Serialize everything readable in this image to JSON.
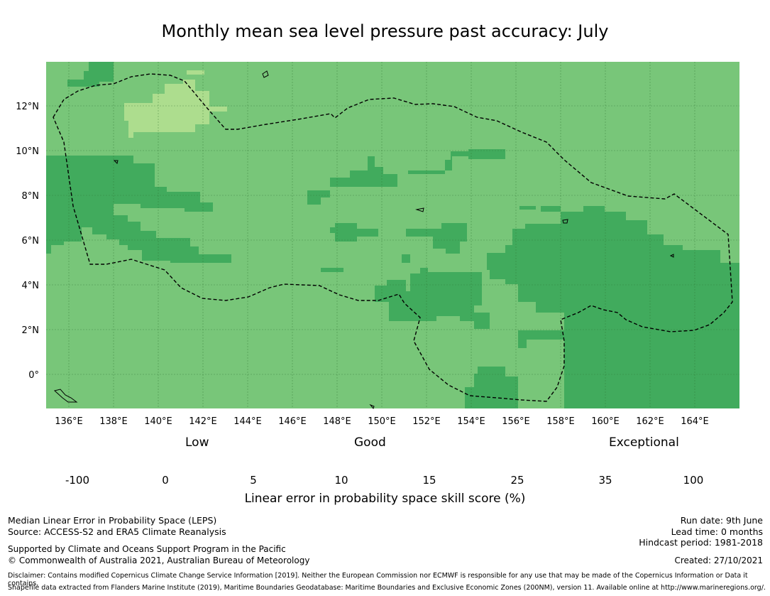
{
  "title": "Monthly mean sea level pressure past accuracy: July",
  "map": {
    "lon_ticks": [
      "136°E",
      "138°E",
      "140°E",
      "142°E",
      "144°E",
      "146°E",
      "148°E",
      "150°E",
      "152°E",
      "154°E",
      "156°E",
      "158°E",
      "160°E",
      "162°E",
      "164°E"
    ],
    "lat_ticks": [
      "12°N",
      "10°N",
      "8°N",
      "6°N",
      "4°N",
      "2°N",
      "0°"
    ],
    "base_color": "#78c679",
    "boundary_style": "dashed black line (EEZ)"
  },
  "legend": {
    "categories": [
      "Low",
      "Good",
      "Exceptional"
    ],
    "ticks": [
      "-100",
      "0",
      "5",
      "10",
      "15",
      "25",
      "35",
      "100"
    ],
    "colors": [
      "#ffffff",
      "#ffffcc",
      "#d9f0a3",
      "#addd8e",
      "#78c679",
      "#41ab5d",
      "#238443"
    ],
    "title": "Linear error in probability space skill score (%)"
  },
  "footer": {
    "left_line1": "Median Linear Error in Probability Space (LEPS)",
    "left_line2": "Source: ACCESS-S2 and ERA5 Climate Reanalysis",
    "left_line3": "Supported by Climate and Oceans Support Program in the Pacific",
    "left_line4": "© Commonwealth of Australia 2021, Australian Bureau of Meteorology",
    "run_date": "Run date: 9th June",
    "lead_time": "Lead time: 0 months",
    "hindcast": "Hindcast period: 1981-2018",
    "created": "Created: 27/10/2021",
    "disclaimer": "Disclaimer: Contains modified Copernicus Climate Change Service Information [2019]. Neither the European Commission nor ECMWF is responsible for any use that may be made of the Copernicus Information or Data it contains.",
    "shapefile": "Shapefile data extracted from Flanders Marine Institute (2019), Maritime Boundaries Geodatabase: Maritime Boundaries and Exclusive Economic Zones (200NM), version 11. Available online at http://www.marineregions.org/."
  }
}
